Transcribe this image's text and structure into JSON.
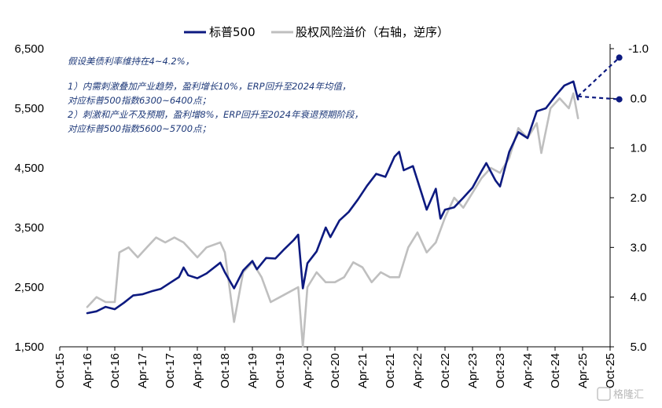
{
  "chart_data": {
    "type": "line",
    "legend": {
      "placement": "top-center",
      "items": [
        {
          "name": "标普500",
          "color": "#0d1a80",
          "axis": "left"
        },
        {
          "name": "股权风险溢价（右轴，逆序）",
          "color": "#bfbfbf",
          "axis": "right"
        }
      ]
    },
    "x_ticks": [
      "Oct-15",
      "Apr-16",
      "Oct-16",
      "Apr-17",
      "Oct-17",
      "Apr-18",
      "Oct-18",
      "Apr-19",
      "Oct-19",
      "Apr-20",
      "Oct-20",
      "Apr-21",
      "Oct-21",
      "Apr-22",
      "Oct-22",
      "Apr-23",
      "Oct-23",
      "Apr-24",
      "Oct-24",
      "Apr-25",
      "Oct-25"
    ],
    "x_range": [
      "2015-10",
      "2025-12"
    ],
    "left_axis": {
      "ylim": [
        1500,
        6500
      ],
      "ticks": [
        "1,500",
        "2,500",
        "3,500",
        "4,500",
        "5,500",
        "6,500"
      ],
      "tick_values": [
        1500,
        2500,
        3500,
        4500,
        5500,
        6500
      ]
    },
    "right_axis": {
      "ylim": [
        -1.0,
        5.0
      ],
      "inverted": true,
      "ticks": [
        "-1.0",
        "0.0",
        "1.0",
        "2.0",
        "3.0",
        "4.0",
        "5.0"
      ],
      "tick_values": [
        -1,
        0,
        1,
        2,
        3,
        4,
        5
      ],
      "highlight_tick_color": "#e00000"
    },
    "series": [
      {
        "name": "标普500",
        "axis": "left",
        "color": "#0d1a80",
        "x": [
          "2016-04",
          "2016-06",
          "2016-08",
          "2016-10",
          "2016-12",
          "2017-02",
          "2017-04",
          "2017-06",
          "2017-08",
          "2017-10",
          "2017-12",
          "2018-01",
          "2018-02",
          "2018-04",
          "2018-06",
          "2018-09",
          "2018-10",
          "2018-12",
          "2019-02",
          "2019-04",
          "2019-05",
          "2019-07",
          "2019-09",
          "2019-11",
          "2020-01",
          "2020-02",
          "2020-03",
          "2020-04",
          "2020-06",
          "2020-08",
          "2020-09",
          "2020-11",
          "2021-01",
          "2021-03",
          "2021-05",
          "2021-07",
          "2021-09",
          "2021-11",
          "2021-12",
          "2022-01",
          "2022-03",
          "2022-05",
          "2022-06",
          "2022-08",
          "2022-09",
          "2022-10",
          "2022-12",
          "2023-02",
          "2023-04",
          "2023-06",
          "2023-07",
          "2023-09",
          "2023-10",
          "2023-12",
          "2024-02",
          "2024-04",
          "2024-06",
          "2024-08",
          "2024-10",
          "2024-12",
          "2025-02",
          "2025-03"
        ],
        "values": [
          2065,
          2095,
          2170,
          2130,
          2240,
          2360,
          2380,
          2430,
          2470,
          2570,
          2670,
          2830,
          2700,
          2650,
          2730,
          2910,
          2750,
          2480,
          2780,
          2940,
          2800,
          2990,
          2980,
          3140,
          3290,
          3380,
          2480,
          2900,
          3100,
          3500,
          3340,
          3620,
          3760,
          3970,
          4200,
          4400,
          4350,
          4690,
          4770,
          4460,
          4530,
          4050,
          3800,
          4150,
          3650,
          3800,
          3840,
          4000,
          4170,
          4450,
          4580,
          4290,
          4190,
          4770,
          5100,
          5000,
          5450,
          5500,
          5700,
          5880,
          5950,
          5650
        ]
      },
      {
        "name": "股权风险溢价（右轴，逆序）",
        "axis": "right",
        "color": "#bfbfbf",
        "x": [
          "2016-04",
          "2016-06",
          "2016-08",
          "2016-10",
          "2016-11",
          "2017-01",
          "2017-03",
          "2017-05",
          "2017-07",
          "2017-09",
          "2017-11",
          "2018-01",
          "2018-02",
          "2018-04",
          "2018-06",
          "2018-09",
          "2018-10",
          "2018-12",
          "2019-02",
          "2019-04",
          "2019-06",
          "2019-08",
          "2019-10",
          "2019-12",
          "2020-02",
          "2020-03",
          "2020-04",
          "2020-06",
          "2020-08",
          "2020-10",
          "2020-12",
          "2021-02",
          "2021-04",
          "2021-06",
          "2021-08",
          "2021-10",
          "2021-12",
          "2022-02",
          "2022-04",
          "2022-06",
          "2022-08",
          "2022-10",
          "2022-12",
          "2023-02",
          "2023-04",
          "2023-06",
          "2023-08",
          "2023-10",
          "2023-12",
          "2024-02",
          "2024-04",
          "2024-06",
          "2024-07",
          "2024-09",
          "2024-11",
          "2025-01",
          "2025-02",
          "2025-03"
        ],
        "values": [
          4.2,
          4.0,
          4.1,
          4.1,
          3.1,
          3.0,
          3.2,
          3.0,
          2.8,
          2.9,
          2.8,
          2.9,
          3.0,
          3.2,
          3.0,
          2.9,
          3.1,
          4.5,
          3.5,
          3.3,
          3.6,
          4.1,
          4.0,
          3.9,
          3.8,
          5.0,
          3.8,
          3.5,
          3.7,
          3.7,
          3.6,
          3.3,
          3.4,
          3.7,
          3.5,
          3.6,
          3.6,
          3.0,
          2.7,
          3.1,
          2.9,
          2.4,
          2.0,
          2.2,
          1.9,
          1.6,
          1.4,
          1.5,
          1.2,
          0.6,
          0.8,
          0.5,
          1.1,
          0.2,
          0.0,
          0.2,
          -0.1,
          0.4
        ]
      }
    ],
    "projections": [
      {
        "name": "盈利增长10%",
        "axis": "left",
        "color": "#0d1a80",
        "style": "dashed",
        "x": [
          "2025-03",
          "2025-12"
        ],
        "values": [
          5700,
          6350
        ]
      },
      {
        "name": "盈利增8%",
        "axis": "left",
        "color": "#0d1a80",
        "style": "dashed",
        "x": [
          "2025-03",
          "2025-12"
        ],
        "values": [
          5700,
          5650
        ]
      }
    ],
    "annotations": [
      "假设美债利率维持在4~4.2%，",
      "1）内需刺激叠加产业趋势，盈利增长10%，ERP回升至2024年均值，",
      "对应标普500指数6300~6400点；",
      "2）刺激和产业不及预期，盈利增8%，ERP回升至2024年衰退预期阶段，",
      "对应标普500指数5600~5700点；"
    ],
    "grid": false
  },
  "watermark": "格隆汇"
}
